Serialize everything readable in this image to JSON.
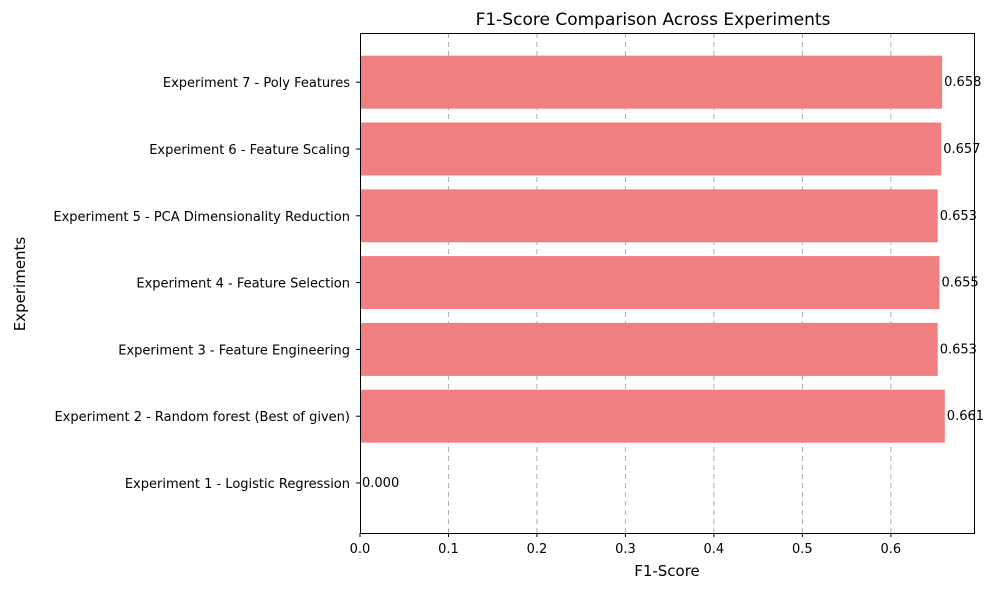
{
  "chart_data": {
    "type": "bar",
    "orientation": "horizontal",
    "title": "F1-Score Comparison Across Experiments",
    "xlabel": "F1-Score",
    "ylabel": "Experiments",
    "categories": [
      "Experiment 1 - Logistic Regression",
      "Experiment 2 - Random forest (Best of given)",
      "Experiment 3 - Feature Engineering",
      "Experiment 4 - Feature Selection",
      "Experiment 5 - PCA Dimensionality Reduction",
      "Experiment 6 - Feature Scaling",
      "Experiment 7 - Poly Features"
    ],
    "values": [
      0.0,
      0.661,
      0.653,
      0.655,
      0.653,
      0.657,
      0.658
    ],
    "value_labels": [
      "0.000",
      "0.661",
      "0.653",
      "0.655",
      "0.653",
      "0.657",
      "0.658"
    ],
    "xticks": [
      "0.0",
      "0.1",
      "0.2",
      "0.3",
      "0.4",
      "0.5",
      "0.6"
    ],
    "xlim": [
      0,
      0.694
    ],
    "grid": "x-dashed",
    "bar_color": "#f08080"
  }
}
